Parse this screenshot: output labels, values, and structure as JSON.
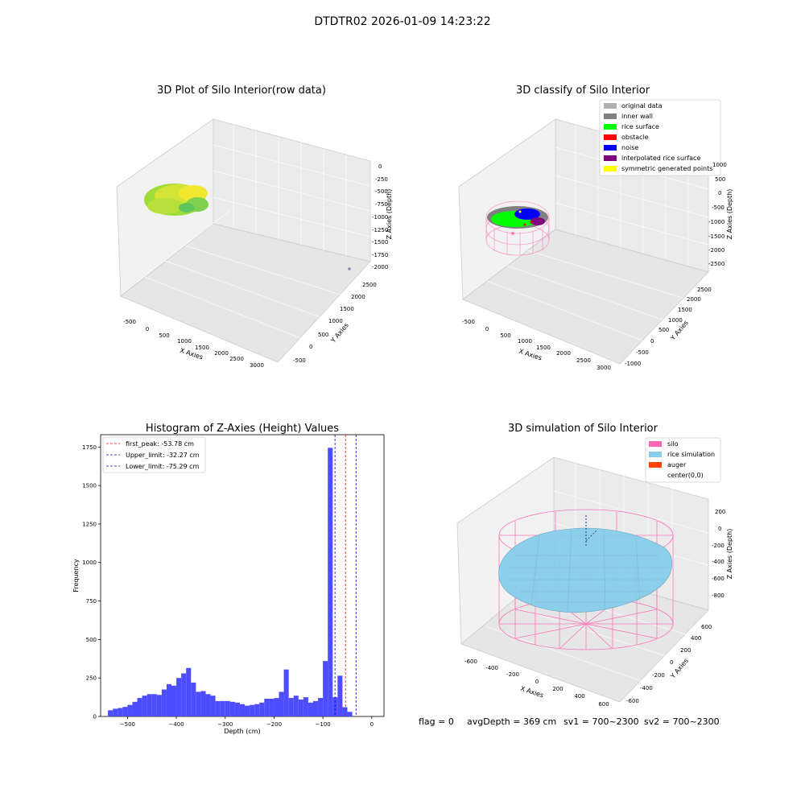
{
  "figure": {
    "suptitle": "DTDTR02 2026-01-09 14:23:22",
    "footer": {
      "flag": "flag = 0",
      "avg": "avgDepth = 369 cm",
      "sv1": "sv1 = 700~2300",
      "sv2": "sv2 = 700~2300"
    }
  },
  "colors": {
    "pane": "#f2f2f2",
    "hist_bar": "#4d4dff",
    "first_peak": "#ff0000",
    "limit": "#0000cc",
    "silo": "#ff69b4",
    "rice": "#87ceeb",
    "auger": "#ff4500"
  },
  "plot1": {
    "title": "3D Plot of Silo Interior(row data)",
    "xlabel": "X Axies",
    "ylabel": "Y Axies",
    "zlabel": "Z Axies (Depth)",
    "xticks": [
      "-500",
      "0",
      "500",
      "1000",
      "1500",
      "2000",
      "2500",
      "3000"
    ],
    "yticks": [
      "-500",
      "0",
      "500",
      "1000",
      "1500",
      "2000",
      "2500"
    ],
    "zticks": [
      "0",
      "-250",
      "-500",
      "-750",
      "-1000",
      "-1250",
      "-1500",
      "-1750",
      "-2000"
    ]
  },
  "plot2": {
    "title": "3D classify of Silo Interior",
    "xlabel": "X Axies",
    "ylabel": "Y Axies",
    "zlabel": "Z Axies (Depth)",
    "xticks": [
      "-500",
      "0",
      "500",
      "1000",
      "1500",
      "2000",
      "2500",
      "3000"
    ],
    "yticks": [
      "-1000",
      "-500",
      "0",
      "500",
      "1000",
      "1500",
      "2000",
      "2500"
    ],
    "zticks": [
      "1000",
      "500",
      "0",
      "-500",
      "-1000",
      "-1500",
      "-2000",
      "-2500"
    ],
    "legend": [
      {
        "label": "original data",
        "color": "#b0b0b0"
      },
      {
        "label": "inner wall",
        "color": "#808080"
      },
      {
        "label": "rice surface",
        "color": "#00ff00"
      },
      {
        "label": "obstacle",
        "color": "#ff0000"
      },
      {
        "label": "noise",
        "color": "#0000ff"
      },
      {
        "label": "interpolated rice surface",
        "color": "#800080"
      },
      {
        "label": "symmetric generated points",
        "color": "#ffff00"
      }
    ]
  },
  "plot4": {
    "title": "3D simulation of Silo Interior",
    "xlabel": "X Axies",
    "ylabel": "Y Axies",
    "zlabel": "Z Axies (Depth)",
    "xticks": [
      "-600",
      "-400",
      "-200",
      "0",
      "200",
      "400",
      "600"
    ],
    "yticks": [
      "-600",
      "-400",
      "-200",
      "0",
      "200",
      "400",
      "600"
    ],
    "zticks": [
      "200",
      "0",
      "-200",
      "-400",
      "-600",
      "-800"
    ],
    "legend": [
      {
        "label": "silo",
        "color": "#ff69b4"
      },
      {
        "label": "rice simulation",
        "color": "#87ceeb"
      },
      {
        "label": "auger",
        "color": "#ff4500"
      },
      {
        "label": "center(0,0)",
        "color": ""
      }
    ]
  },
  "chart_data": {
    "type": "bar",
    "title": "Histogram of Z-Axies (Height) Values",
    "xlabel": "Depth (cm)",
    "ylabel": "Frequency",
    "xlim": [
      -555,
      25
    ],
    "ylim": [
      0,
      1830
    ],
    "xticks": [
      -500,
      -400,
      -300,
      -200,
      -100,
      0
    ],
    "xtick_labels": [
      "−500",
      "−400",
      "−300",
      "−200",
      "−100",
      "0"
    ],
    "yticks": [
      0,
      250,
      500,
      750,
      1000,
      1250,
      1500,
      1750
    ],
    "yticks_labels": [
      "0",
      "250",
      "500",
      "750",
      "1000",
      "1250",
      "1500",
      "1750"
    ],
    "bin_start": -540,
    "bin_width": 10,
    "counts": [
      40,
      50,
      55,
      62,
      75,
      95,
      120,
      135,
      145,
      145,
      140,
      175,
      210,
      200,
      250,
      280,
      315,
      220,
      160,
      165,
      145,
      135,
      100,
      100,
      100,
      95,
      90,
      80,
      70,
      75,
      80,
      90,
      115,
      115,
      120,
      160,
      305,
      120,
      135,
      110,
      125,
      90,
      100,
      120,
      360,
      1745,
      125,
      265,
      60,
      30
    ],
    "legend": [
      {
        "label": "first_peak: -53.78 cm",
        "value": -53.78,
        "style": "first_peak"
      },
      {
        "label": "Upper_limit: -32.27 cm",
        "value": -32.27,
        "style": "limit"
      },
      {
        "label": "Lower_limit: -75.29 cm",
        "value": -75.29,
        "style": "limit"
      }
    ],
    "grid": false,
    "legend_position": "upper-left"
  }
}
